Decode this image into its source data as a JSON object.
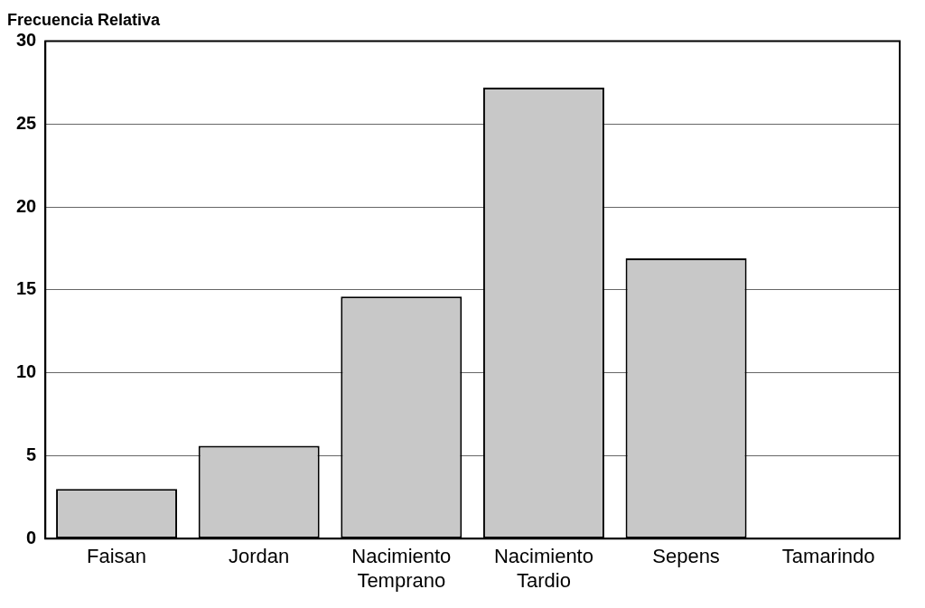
{
  "chart_data": {
    "type": "bar",
    "ylabel": "Frecuencia Relativa",
    "categories": [
      "Faisan",
      "Jordan",
      "Nacimiento Temprano",
      "Nacimiento Tardio",
      "Sepens",
      "Tamarindo"
    ],
    "values": [
      3.0,
      5.6,
      14.6,
      27.2,
      16.9,
      0
    ],
    "color": "#c8c8c8",
    "ylim": [
      0,
      30
    ],
    "yticks": [
      0,
      5,
      10,
      15,
      20,
      25,
      30
    ],
    "grid": "y",
    "legend": false
  }
}
